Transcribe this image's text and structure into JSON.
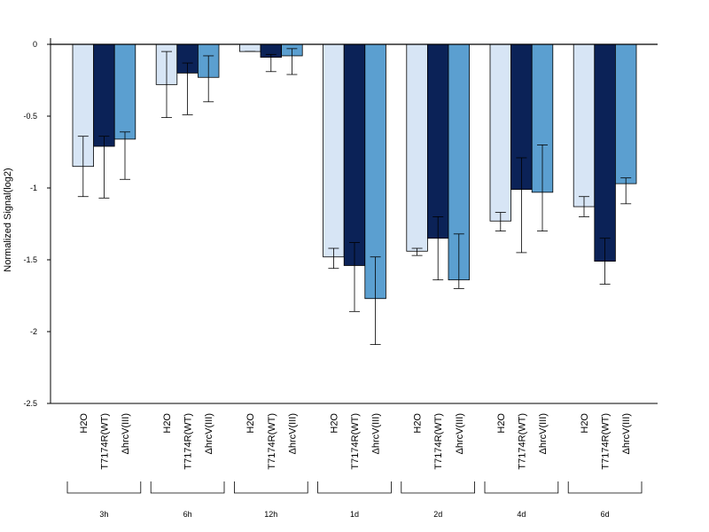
{
  "chart_data": {
    "type": "bar",
    "title": "",
    "ylabel": "Normalized Signal(log2)",
    "xlabel": "",
    "ylim": [
      -2.5,
      0
    ],
    "yticks": [
      0,
      -0.5,
      -1,
      -1.5,
      -2,
      -2.5
    ],
    "ytick_labels": [
      "0",
      "-0.5",
      "-1",
      "-1.5",
      "-2",
      "-2.5"
    ],
    "grid": false,
    "legend": "none",
    "bar_labels": [
      "H2O",
      "T7174R(WT)",
      "ΔhrcV(III)"
    ],
    "colors": [
      "#d7e5f5",
      "#0b2257",
      "#5b9fd0"
    ],
    "groups": [
      {
        "label": "3h",
        "values": [
          -0.85,
          -0.71,
          -0.66
        ],
        "err_low": [
          -1.06,
          -1.07,
          -0.94
        ],
        "err_high": [
          -0.64,
          -0.64,
          -0.61
        ]
      },
      {
        "label": "6h",
        "values": [
          -0.28,
          -0.2,
          -0.23
        ],
        "err_low": [
          -0.51,
          -0.49,
          -0.4
        ],
        "err_high": [
          -0.05,
          -0.13,
          -0.08
        ]
      },
      {
        "label": "12h",
        "values": [
          -0.05,
          -0.09,
          -0.08
        ],
        "err_low": [
          -0.05,
          -0.19,
          -0.21
        ],
        "err_high": [
          -0.05,
          -0.07,
          -0.03
        ]
      },
      {
        "label": "1d",
        "values": [
          -1.48,
          -1.54,
          -1.77
        ],
        "err_low": [
          -1.56,
          -1.86,
          -2.09
        ],
        "err_high": [
          -1.42,
          -1.38,
          -1.48
        ]
      },
      {
        "label": "2d",
        "values": [
          -1.44,
          -1.35,
          -1.64
        ],
        "err_low": [
          -1.47,
          -1.64,
          -1.7
        ],
        "err_high": [
          -1.42,
          -1.2,
          -1.32
        ]
      },
      {
        "label": "4d",
        "values": [
          -1.23,
          -1.01,
          -1.03
        ],
        "err_low": [
          -1.3,
          -1.45,
          -1.3
        ],
        "err_high": [
          -1.17,
          -0.79,
          -0.7
        ]
      },
      {
        "label": "6d",
        "values": [
          -1.13,
          -1.51,
          -0.97
        ],
        "err_low": [
          -1.2,
          -1.67,
          -1.11
        ],
        "err_high": [
          -1.06,
          -1.35,
          -0.93
        ]
      }
    ]
  }
}
